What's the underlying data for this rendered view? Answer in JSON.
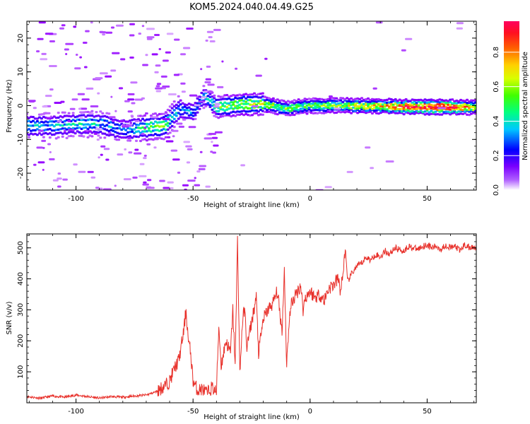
{
  "title": "KOM5.2024.040.04.49.G25",
  "colorbar": {
    "label": "Normalized spectral amplitude",
    "ticks": [
      "0.0",
      "0.2",
      "0.4",
      "0.6",
      "0.8"
    ],
    "tick_values": [
      0.0,
      0.2,
      0.4,
      0.6,
      0.8
    ],
    "range": [
      0,
      0.98
    ],
    "colormap": [
      "#ffffff",
      "#9400ff",
      "#4b00ff",
      "#0000ff",
      "#00b4ff",
      "#00ff90",
      "#3cff00",
      "#d2ff00",
      "#ffdc00",
      "#ff8000",
      "#ff2000",
      "#ff0060"
    ]
  },
  "chart_data": [
    {
      "type": "heatmap",
      "title": "",
      "xlabel": "Height of straight line (km)",
      "ylabel": "Frequency (Hz)",
      "xlim": [
        -121,
        71
      ],
      "ylim": [
        -25,
        25
      ],
      "x_ticks": [
        -100,
        -50,
        0,
        50
      ],
      "x_tick_labels": [
        "-100",
        "-50",
        "0",
        "50"
      ],
      "y_ticks": [
        -20,
        -10,
        0,
        10,
        20
      ],
      "y_tick_labels": [
        "-20",
        "-10",
        "0",
        "10",
        "20"
      ],
      "ridge_center": [
        {
          "x": -110,
          "y": -6.0
        },
        {
          "x": -100,
          "y": -5.5
        },
        {
          "x": -90,
          "y": -5.5
        },
        {
          "x": -80,
          "y": -7.0
        },
        {
          "x": -70,
          "y": -6.5
        },
        {
          "x": -62,
          "y": -6.0
        },
        {
          "x": -56,
          "y": -1.0
        },
        {
          "x": -50,
          "y": -2.0
        },
        {
          "x": -45,
          "y": 3.0
        },
        {
          "x": -40,
          "y": -0.5
        },
        {
          "x": -30,
          "y": 0.3
        },
        {
          "x": -20,
          "y": 0.5
        },
        {
          "x": -10,
          "y": -0.8
        },
        {
          "x": 0,
          "y": 0.0
        },
        {
          "x": 20,
          "y": 0.0
        },
        {
          "x": 40,
          "y": -0.3
        },
        {
          "x": 70,
          "y": -0.5
        }
      ],
      "ridge_amplitude": [
        {
          "x": -110,
          "a": 0.35
        },
        {
          "x": -95,
          "a": 0.4
        },
        {
          "x": -80,
          "a": 0.3
        },
        {
          "x": -65,
          "a": 0.55
        },
        {
          "x": -55,
          "a": 0.3
        },
        {
          "x": -45,
          "a": 0.35
        },
        {
          "x": -35,
          "a": 0.55
        },
        {
          "x": -20,
          "a": 0.6
        },
        {
          "x": -5,
          "a": 0.5
        },
        {
          "x": 10,
          "a": 0.6
        },
        {
          "x": 30,
          "a": 0.7
        },
        {
          "x": 40,
          "a": 0.9
        },
        {
          "x": 60,
          "a": 0.95
        },
        {
          "x": 71,
          "a": 0.6
        }
      ]
    },
    {
      "type": "line",
      "title": "",
      "xlabel": "Height of straight line (km)",
      "ylabel": "SNR (v/v)",
      "xlim": [
        -121,
        71
      ],
      "ylim": [
        0,
        545
      ],
      "x_ticks": [
        -100,
        -50,
        0,
        50
      ],
      "x_tick_labels": [
        "-100",
        "-50",
        "0",
        "50"
      ],
      "y_ticks": [
        100,
        200,
        300,
        400,
        500
      ],
      "y_tick_labels": [
        "100",
        "200",
        "300",
        "400",
        "500"
      ],
      "line_color": "#e8302a",
      "series": [
        {
          "x": [
            -121,
            -115,
            -110,
            -105,
            -100,
            -95,
            -90,
            -85,
            -80,
            -75,
            -70,
            -66,
            -62,
            -60,
            -58,
            -56,
            -54,
            -53,
            -52,
            -51,
            -50,
            -48,
            -46,
            -44,
            -42,
            -40,
            -39,
            -38,
            -36,
            -34,
            -33,
            -32,
            -31,
            -30,
            -29,
            -28,
            -27,
            -25,
            -23,
            -22,
            -20,
            -18,
            -16,
            -14,
            -12,
            -11,
            -10,
            -9,
            -8,
            -6,
            -4,
            -3,
            -2,
            0,
            2,
            4,
            6,
            8,
            10,
            12,
            13,
            14,
            15,
            16,
            18,
            20,
            22,
            24,
            26,
            28,
            30,
            32,
            34,
            36,
            38,
            40,
            42,
            44,
            46,
            48,
            50,
            52,
            54,
            56,
            58,
            60,
            62,
            64,
            66,
            68,
            71
          ],
          "y": [
            20,
            15,
            22,
            18,
            25,
            20,
            15,
            20,
            18,
            22,
            25,
            35,
            55,
            70,
            110,
            140,
            230,
            300,
            200,
            160,
            70,
            40,
            45,
            30,
            50,
            35,
            250,
            120,
            200,
            160,
            300,
            120,
            530,
            90,
            250,
            310,
            180,
            260,
            340,
            160,
            270,
            300,
            320,
            360,
            230,
            430,
            120,
            260,
            320,
            350,
            380,
            300,
            340,
            360,
            340,
            350,
            330,
            370,
            380,
            400,
            360,
            410,
            500,
            390,
            420,
            440,
            450,
            470,
            460,
            480,
            470,
            490,
            480,
            500,
            495,
            490,
            505,
            500,
            495,
            505,
            510,
            500,
            505,
            495,
            510,
            500,
            505,
            490,
            510,
            500,
            505
          ]
        }
      ]
    }
  ]
}
